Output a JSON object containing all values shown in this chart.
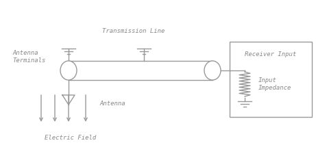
{
  "bg_color": "#ffffff",
  "line_color": "#999999",
  "text_color": "#888888",
  "fig_width": 4.61,
  "fig_height": 2.31,
  "dpi": 100,
  "labels": {
    "electric_field": "Electric Field",
    "antenna": "Antenna",
    "antenna_terminals": "Antenna\nTerminals",
    "transmission_line": "Transmission Line",
    "receiver_input": "Receiver Input",
    "input_impedance": "Input\nImpedance"
  },
  "font_family": "monospace",
  "font_size": 6.5
}
